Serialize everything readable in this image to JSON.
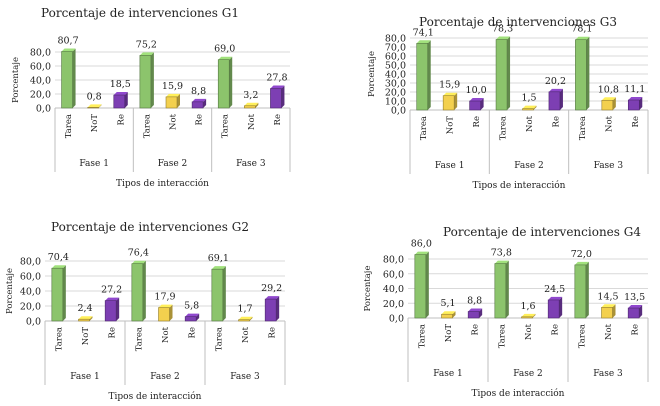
{
  "chart_data": [
    {
      "type": "bar",
      "title": "Porcentaje de intervenciones G1",
      "xlabel": "Tipos de interacción",
      "ylabel": "Porcentaje",
      "ylim": [
        0,
        80
      ],
      "yticks": [
        "0,0",
        "20,0",
        "40,0",
        "60,0",
        "80,0"
      ],
      "groups": [
        {
          "name": "Fase 1",
          "categories": [
            "Tarea",
            "NoT",
            "Re"
          ],
          "values": [
            80.7,
            0.8,
            18.5
          ],
          "labels": [
            "80,7",
            "0,8",
            "18,5"
          ]
        },
        {
          "name": "Fase 2",
          "categories": [
            "Tarea",
            "Not",
            "Re"
          ],
          "values": [
            75.2,
            15.9,
            8.8
          ],
          "labels": [
            "75,2",
            "15,9",
            "8,8"
          ]
        },
        {
          "name": "Fase 3",
          "categories": [
            "Tarea",
            "Not",
            "Re"
          ],
          "values": [
            69.0,
            3.2,
            27.8
          ],
          "labels": [
            "69,0",
            "3,2",
            "27,8"
          ]
        }
      ]
    },
    {
      "type": "bar",
      "title": "Porcentaje de intervenciones G3",
      "xlabel": "Tipos de interacción",
      "ylabel": "Porcentaje",
      "ylim": [
        0,
        80
      ],
      "yticks": [
        "0,0",
        "10,0",
        "20,0",
        "30,0",
        "40,0",
        "50,0",
        "60,0",
        "70,0",
        "80,0"
      ],
      "groups": [
        {
          "name": "Fase 1",
          "categories": [
            "Tarea",
            "NoT",
            "Re"
          ],
          "values": [
            74.1,
            15.9,
            10.0
          ],
          "labels": [
            "74,1",
            "15,9",
            "10,0"
          ]
        },
        {
          "name": "Fase 2",
          "categories": [
            "Tarea",
            "Not",
            "Re"
          ],
          "values": [
            78.3,
            1.5,
            20.2
          ],
          "labels": [
            "78,3",
            "1,5",
            "20,2"
          ]
        },
        {
          "name": "Fase 3",
          "categories": [
            "Tarea",
            "Not",
            "Re"
          ],
          "values": [
            78.1,
            10.8,
            11.1
          ],
          "labels": [
            "78,1",
            "10,8",
            "11,1"
          ]
        }
      ]
    },
    {
      "type": "bar",
      "title": "Porcentaje de intervenciones G2",
      "xlabel": "Tipos de interacción",
      "ylabel": "Porcentaje",
      "ylim": [
        0,
        80
      ],
      "yticks": [
        "0,0",
        "20,0",
        "40,0",
        "60,0",
        "80,0"
      ],
      "groups": [
        {
          "name": "Fase 1",
          "categories": [
            "Tarea",
            "NoT",
            "Re"
          ],
          "values": [
            70.4,
            2.4,
            27.2
          ],
          "labels": [
            "70,4",
            "2,4",
            "27,2"
          ]
        },
        {
          "name": "Fase 2",
          "categories": [
            "Tarea",
            "Not",
            "Re"
          ],
          "values": [
            76.4,
            17.9,
            5.8
          ],
          "labels": [
            "76,4",
            "17,9",
            "5,8"
          ]
        },
        {
          "name": "Fase 3",
          "categories": [
            "Tarea",
            "Not",
            "Re"
          ],
          "values": [
            69.1,
            1.7,
            29.2
          ],
          "labels": [
            "69,1",
            "1,7",
            "29,2"
          ]
        }
      ]
    },
    {
      "type": "bar",
      "title": "Porcentaje de intervenciones G4",
      "xlabel": "Tipos de interacción",
      "ylabel": "Porcentaje",
      "ylim": [
        0,
        80
      ],
      "yticks": [
        "0,0",
        "20,0",
        "40,0",
        "60,0",
        "80,0"
      ],
      "groups": [
        {
          "name": "Fase 1",
          "categories": [
            "Tarea",
            "NoT",
            "Re"
          ],
          "values": [
            86.0,
            5.1,
            8.8
          ],
          "labels": [
            "86,0",
            "5,1",
            "8,8"
          ]
        },
        {
          "name": "Fase 2",
          "categories": [
            "Tarea",
            "Not",
            "Re"
          ],
          "values": [
            73.8,
            1.6,
            24.5
          ],
          "labels": [
            "73,8",
            "1,6",
            "24,5"
          ]
        },
        {
          "name": "Fase 3",
          "categories": [
            "Tarea",
            "Not",
            "Re"
          ],
          "values": [
            72.0,
            14.5,
            13.5
          ],
          "labels": [
            "72,0",
            "14,5",
            "13,5"
          ]
        }
      ]
    }
  ],
  "colors": {
    "tarea": "#8cc46c",
    "not": "#f3d04e",
    "re": "#7d3fb3",
    "grid": "#d9d9d9"
  }
}
